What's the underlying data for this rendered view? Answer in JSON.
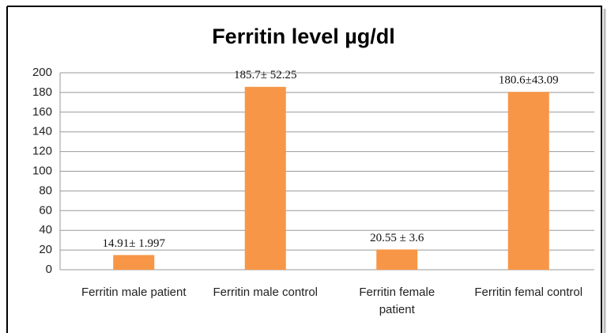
{
  "chart_data": {
    "type": "bar",
    "title": "Ferritin level µg/dl",
    "categories": [
      "Ferritin male patient",
      "Ferritin male control",
      "Ferritin female patient",
      "Ferritin femal control"
    ],
    "values": [
      14.91,
      185.7,
      20.55,
      180.6
    ],
    "value_labels": [
      "14.91± 1.997",
      "185.7± 52.25",
      "20.55 ± 3.6",
      "180.6±43.09"
    ],
    "color": "#f79646",
    "ylim": [
      0,
      200
    ],
    "yticks": [
      0,
      20,
      40,
      60,
      80,
      100,
      120,
      140,
      160,
      180,
      200
    ],
    "grid": true
  }
}
